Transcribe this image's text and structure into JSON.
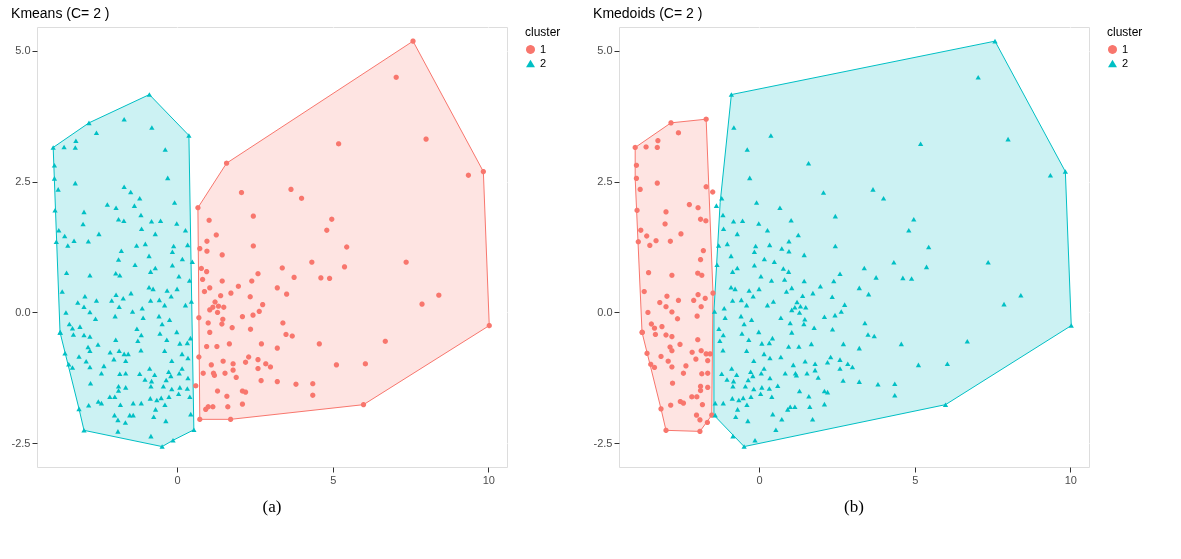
{
  "chart_data": [
    {
      "type": "scatter",
      "title": "Kmeans (C= 2 )",
      "legend_title": "cluster",
      "legend": "right",
      "grid": true,
      "annotations": [
        "(a)"
      ],
      "xlim": [
        -4.5,
        10.6
      ],
      "xticks": [
        0,
        5,
        10
      ],
      "ylim": [
        -2.95,
        5.45
      ],
      "yticks": [
        {
          "value": -2.5,
          "label": "-2.5"
        },
        {
          "value": 0,
          "label": "0.0"
        },
        {
          "value": 2.5,
          "label": "2.5"
        },
        {
          "value": 5,
          "label": "5.0"
        }
      ],
      "series": [
        {
          "type": "area",
          "color": "#f8766d",
          "x": [
            7.58,
            9.84,
            10.03,
            5.99,
            1.72,
            0.73,
            0.67,
            1.59,
            7.58
          ],
          "values": [
            5.18,
            2.69,
            -0.25,
            -1.76,
            -2.04,
            -2.04,
            2.0,
            2.85,
            5.18
          ]
        },
        {
          "type": "area",
          "color": "#00bfc4",
          "x": [
            -0.89,
            0.38,
            0.54,
            -0.13,
            -0.48,
            -2.99,
            -3.15,
            -3.76,
            -3.98,
            -2.83,
            -0.89
          ],
          "values": [
            4.16,
            3.38,
            -2.24,
            -2.44,
            -2.56,
            -2.25,
            -1.84,
            -0.38,
            3.15,
            3.62,
            4.16
          ]
        },
        {
          "name": "1",
          "color": "#f8766d",
          "marker": "circle",
          "x": [
            7.58,
            9.84,
            10.03,
            5.99,
            1.72,
            0.73,
            0.67,
            1.59,
            7.04,
            8.0,
            9.36,
            5.19,
            3.66,
            4.0,
            2.07,
            4.97,
            4.81,
            2.45,
            5.45,
            2.45,
            7.36,
            4.33,
            5.38,
            3.38,
            3.76,
            4.62,
            4.9,
            8.41,
            7.87,
            3.22,
            3.52,
            2.6,
            2.4,
            2.64,
            2.44,
            2.75,
            2.35,
            2.1,
            2.36,
            1.97,
            1.73,
            1.4,
            1.5,
            1.05,
            1.3,
            1.47,
            1.44,
            1.77,
            1.0,
            0.7,
            3.4,
            3.5,
            3.7,
            1.05,
            0.95,
            1.28,
            1.68,
            2.71,
            3.22,
            4.57,
            6.69,
            6.05,
            5.12,
            2.3,
            2.2,
            2.6,
            2.85,
            3.0,
            2.6,
            1.48,
            1.8,
            1.1,
            1.8,
            1.54,
            1.17,
            0.84,
            1.2,
            1.9,
            2.7,
            3.22,
            3.82,
            4.36,
            4.36,
            1.3,
            2.1,
            2.2,
            1.6,
            2.1,
            1.63,
            1.15,
            1.0,
            0.92,
            0.7,
            0.6,
            0.78,
            0.95,
            0.82,
            1.45,
            1.26,
            0.96,
            0.73,
            0.96,
            1.03,
            1.45,
            0.88,
            1.05,
            1.22,
            1.33,
            1.15
          ],
          "values": [
            5.18,
            2.69,
            -0.25,
            -1.76,
            -2.04,
            -2.04,
            2.0,
            2.85,
            4.49,
            3.31,
            2.62,
            3.22,
            2.35,
            2.18,
            2.29,
            1.78,
            1.57,
            1.84,
            1.25,
            1.27,
            0.96,
            0.96,
            0.87,
            0.85,
            0.67,
            0.66,
            0.65,
            0.33,
            0.16,
            0.47,
            0.35,
            0.74,
            0.6,
            0.02,
            -0.05,
            0.15,
            0.3,
            -0.08,
            -0.32,
            0.5,
            0.37,
            0.32,
            0.1,
            0.05,
            0.0,
            -0.13,
            -0.22,
            -0.29,
            -0.2,
            -0.1,
            -0.2,
            -0.42,
            -0.45,
            -0.38,
            -0.65,
            -0.65,
            -0.6,
            -0.6,
            -0.68,
            -0.6,
            -0.55,
            -0.98,
            -1.0,
            -0.85,
            -0.95,
            -0.9,
            -0.98,
            -1.04,
            -1.07,
            -0.93,
            -0.98,
            -1.0,
            -1.1,
            -1.16,
            -1.16,
            -1.16,
            -1.2,
            -1.24,
            -1.3,
            -1.32,
            -1.37,
            -1.36,
            -1.58,
            -1.5,
            -1.5,
            -1.52,
            -1.6,
            -1.75,
            -1.8,
            -1.8,
            -1.8,
            -1.85,
            -0.85,
            -1.4,
            0.84,
            0.78,
            0.63,
            1.1,
            1.48,
            1.36,
            1.22,
            1.17,
            1.76,
            0.6,
            0.4,
            0.47,
            0.2,
            0.12,
            0.1
          ]
        },
        {
          "name": "2",
          "color": "#00bfc4",
          "marker": "triangle",
          "x": [
            -0.89,
            0.38,
            0.54,
            -0.13,
            -0.48,
            -2.99,
            -3.15,
            -3.76,
            -3.98,
            -2.83,
            -3.94,
            -1.7,
            -0.81,
            -2.59,
            -3.63,
            -3.27,
            -3.25,
            -0.38,
            -0.3,
            -3.27,
            -3.94,
            -3.82,
            -1.7,
            -1.49,
            -1.2,
            -0.08,
            -2.24,
            -1.96,
            -1.37,
            -3.92,
            -2.99,
            -1.88,
            -1.71,
            -1.16,
            -0.82,
            -0.53,
            -3.02,
            -1.14,
            -0.7,
            -0.01,
            0.27,
            -3.8,
            -3.61,
            -3.31,
            -2.85,
            -2.51,
            -3.88,
            -3.51,
            -1.3,
            -1.02,
            -0.11,
            0.34,
            -1.79,
            -0.15,
            0.17,
            -1.88,
            -1.35,
            -0.9,
            -0.85,
            -0.7,
            -0.15,
            0.49,
            -3.55,
            -2.8,
            -1.97,
            -1.84,
            0.06,
            0.4,
            -3.69,
            -2.96,
            -2.59,
            -2.1,
            -1.73,
            -1.48,
            -1.96,
            -0.9,
            -0.77,
            -0.32,
            0.0,
            -0.85,
            -0.57,
            -0.19,
            -0.4,
            0.46,
            0.27,
            -3.19,
            -2.99,
            -3.57,
            -2.8,
            -1.86,
            -1.43,
            -1.12,
            -1.99,
            -2.62,
            -1.09,
            -0.58,
            -0.48,
            -0.24,
            -3.46,
            -3.36,
            -3.12,
            -3.33,
            -2.99,
            -2.8,
            -3.75,
            -1.29,
            -1.15,
            -0.55,
            -0.01,
            -1.97,
            -1.26,
            -0.33,
            0.43,
            0.33,
            0.09,
            -2.54,
            -2.86,
            -2.8,
            -3.6,
            -2.15,
            -1.86,
            -1.7,
            -1.57,
            -1.16,
            -0.4,
            0.16,
            -3.15,
            -2.92,
            -2.03,
            -1.65,
            -0.17,
            0.35,
            -3.48,
            -3.36,
            -2.8,
            -2.35,
            -2.43,
            -0.88,
            -1.2,
            -0.72,
            -0.27,
            0.16,
            0.07,
            -0.2,
            -1.84,
            -1.65,
            0.35,
            -1.03,
            -0.82,
            -0.35,
            -2.78,
            -1.88,
            -1.65,
            -0.84,
            -0.44,
            -0.17,
            0.09,
            0.33,
            -1.88,
            0.05,
            0.41,
            -2.16,
            -2.0,
            -2.53,
            -2.43,
            -2.84,
            -1.82,
            -1.41,
            -1.15,
            -0.86,
            -0.65,
            -0.51,
            -0.26,
            -0.39,
            -0.69,
            -2.01,
            -1.52,
            -1.41,
            -0.75,
            -1.9,
            -1.66,
            -0.36,
            0.44,
            -1.9,
            -0.84
          ],
          "values": [
            4.16,
            3.38,
            -2.24,
            -2.44,
            -2.56,
            -2.25,
            -1.84,
            -0.38,
            3.15,
            3.62,
            2.81,
            3.69,
            3.53,
            3.43,
            3.16,
            3.15,
            3.28,
            3.11,
            2.57,
            2.47,
            2.56,
            2.35,
            2.4,
            2.3,
            2.18,
            2.1,
            2.06,
            2.0,
            2.04,
            1.95,
            1.92,
            1.78,
            1.75,
            1.86,
            1.74,
            1.75,
            1.69,
            1.6,
            1.5,
            1.7,
            1.57,
            1.57,
            1.46,
            1.37,
            1.36,
            1.5,
            1.35,
            1.28,
            1.28,
            1.31,
            1.27,
            1.29,
            1.18,
            1.16,
            1.02,
            1.01,
            0.91,
            1.08,
            0.78,
            0.85,
            0.9,
            0.97,
            0.76,
            0.71,
            0.75,
            0.71,
            0.69,
            0.61,
            0.4,
            0.31,
            0.23,
            0.23,
            0.27,
            0.37,
            0.34,
            0.48,
            0.45,
            0.42,
            0.45,
            0.23,
            0.24,
            0.31,
            0.14,
            0.21,
            0.14,
            0.19,
            0.11,
            0.0,
            0.01,
            0.11,
            0.02,
            0.08,
            -0.07,
            -0.12,
            -0.1,
            -0.07,
            -0.22,
            -0.14,
            -0.22,
            -0.3,
            -0.27,
            -0.42,
            -0.43,
            -0.46,
            -0.38,
            -0.31,
            -0.43,
            -0.4,
            -0.37,
            -0.52,
            -0.54,
            -0.52,
            -0.49,
            -0.58,
            -0.59,
            -0.61,
            -0.66,
            -0.73,
            -0.78,
            -0.76,
            -0.73,
            -0.79,
            -0.79,
            -0.72,
            -0.73,
            -0.79,
            -0.84,
            -0.93,
            -0.89,
            -0.92,
            -0.92,
            -0.87,
            -0.99,
            -1.05,
            -1.04,
            -1.02,
            -1.16,
            -1.07,
            -1.17,
            -1.19,
            -1.13,
            -1.07,
            -1.16,
            -1.21,
            -1.17,
            -1.16,
            -1.25,
            -1.28,
            -1.31,
            -1.29,
            -1.35,
            -1.41,
            -1.43,
            -1.41,
            -1.41,
            -1.46,
            -1.43,
            -1.45,
            -1.49,
            -1.55,
            -1.61,
            -1.61,
            -1.61,
            -1.7,
            -1.73,
            -1.77,
            -1.76,
            -1.73,
            -1.73,
            -1.64,
            -1.67,
            -1.63,
            -1.61,
            -1.76,
            -1.85,
            -1.96,
            -1.96,
            -1.96,
            -1.99,
            -2.05,
            -2.1,
            -2.07,
            -1.94,
            -2.27,
            -2.36
          ]
        }
      ]
    },
    {
      "type": "scatter",
      "title": "Kmedoids (C= 2 )",
      "legend_title": "cluster",
      "legend": "right",
      "grid": true,
      "annotations": [
        "(b)"
      ],
      "xlim": [
        -4.5,
        10.6
      ],
      "xticks": [
        0,
        5,
        10
      ],
      "ylim": [
        -2.95,
        5.45
      ],
      "yticks": [
        {
          "value": -2.5,
          "label": "-2.5"
        },
        {
          "value": 0,
          "label": "0.0"
        },
        {
          "value": 2.5,
          "label": "2.5"
        },
        {
          "value": 5,
          "label": "5.0"
        }
      ],
      "series": [
        {
          "type": "area",
          "color": "#f8766d",
          "x": [
            -3.98,
            -2.83,
            -1.7,
            -1.48,
            -1.52,
            -1.9,
            -2.99,
            -3.15,
            -3.76,
            -3.98,
            -3.98
          ],
          "values": [
            3.15,
            3.62,
            3.69,
            0.37,
            -1.96,
            -2.27,
            -2.25,
            -1.84,
            -0.38,
            2.56,
            3.15
          ]
        },
        {
          "type": "area",
          "color": "#00bfc4",
          "x": [
            -0.89,
            7.58,
            9.84,
            10.03,
            5.99,
            -0.48,
            -1.45,
            -1.45,
            -1.25,
            -0.89
          ],
          "values": [
            4.16,
            5.18,
            2.69,
            -0.25,
            -1.76,
            -2.56,
            -1.96,
            0.02,
            2.1,
            4.16
          ]
        },
        {
          "name": "1",
          "color": "#f8766d",
          "marker": "circle",
          "x": [
            -1.7,
            -2.59,
            -3.63,
            -3.27,
            -3.25,
            -3.27,
            -3.94,
            -3.82,
            -1.7,
            -1.49,
            -2.24,
            -1.96,
            -3.92,
            -2.99,
            -1.88,
            -1.71,
            -3.02,
            -3.8,
            -3.61,
            -3.31,
            -2.85,
            -2.51,
            -3.88,
            -3.51,
            -1.79,
            -1.88,
            -3.55,
            -2.8,
            -1.97,
            -1.84,
            -3.69,
            -2.96,
            -2.59,
            -2.1,
            -1.73,
            -1.48,
            -1.96,
            -3.19,
            -2.99,
            -3.57,
            -2.8,
            -1.86,
            -1.99,
            -2.62,
            -3.46,
            -3.36,
            -3.12,
            -3.33,
            -2.99,
            -2.8,
            -3.75,
            -1.97,
            -2.54,
            -2.86,
            -2.8,
            -3.6,
            -2.15,
            -1.86,
            -1.7,
            -1.57,
            -3.15,
            -2.92,
            -2.03,
            -1.65,
            -3.48,
            -3.36,
            -2.8,
            -2.35,
            -2.43,
            -1.84,
            -1.65,
            -2.78,
            -1.88,
            -1.65,
            -1.88,
            -2.16,
            -2.0,
            -2.53,
            -2.43,
            -2.84,
            -1.82,
            -2.01,
            -1.52,
            -1.9,
            -1.66,
            -1.9,
            -2.99,
            -3.15,
            -3.76,
            -3.98,
            -2.83,
            -3.94
          ],
          "values": [
            3.69,
            3.43,
            3.16,
            3.15,
            3.28,
            2.47,
            2.56,
            2.35,
            2.4,
            2.3,
            2.06,
            2.0,
            1.95,
            1.92,
            1.78,
            1.75,
            1.69,
            1.57,
            1.46,
            1.37,
            1.36,
            1.5,
            1.35,
            1.28,
            1.18,
            1.01,
            0.76,
            0.71,
            0.75,
            0.71,
            0.4,
            0.31,
            0.23,
            0.23,
            0.27,
            0.37,
            0.34,
            0.19,
            0.11,
            0.0,
            0.01,
            0.11,
            -0.07,
            -0.12,
            -0.22,
            -0.3,
            -0.27,
            -0.42,
            -0.43,
            -0.46,
            -0.38,
            -0.52,
            -0.61,
            -0.66,
            -0.73,
            -0.78,
            -0.76,
            -0.73,
            -0.79,
            -0.79,
            -0.84,
            -0.93,
            -0.89,
            -0.92,
            -0.99,
            -1.05,
            -1.04,
            -1.02,
            -1.16,
            -1.17,
            -1.16,
            -1.35,
            -1.41,
            -1.43,
            -1.49,
            -1.61,
            -1.61,
            -1.7,
            -1.73,
            -1.77,
            -1.76,
            -1.96,
            -1.96,
            -2.05,
            -2.1,
            -2.27,
            -2.25,
            -1.84,
            -0.38,
            3.15,
            3.62,
            2.81
          ]
        },
        {
          "name": "2",
          "color": "#00bfc4",
          "marker": "triangle",
          "x": [
            -0.81,
            -0.38,
            -0.3,
            -1.2,
            -0.08,
            -1.37,
            -1.16,
            -0.82,
            -0.53,
            -1.14,
            -0.7,
            -0.01,
            0.27,
            -1.3,
            -1.02,
            -0.11,
            0.34,
            -0.15,
            0.17,
            -1.35,
            -0.9,
            -0.85,
            -0.7,
            -0.15,
            0.49,
            0.06,
            0.4,
            -0.9,
            -0.77,
            -0.32,
            0.0,
            -0.85,
            -0.57,
            -0.19,
            -0.4,
            0.46,
            0.27,
            -1.43,
            -1.12,
            -1.09,
            -0.58,
            -0.48,
            -0.24,
            -1.29,
            -1.15,
            -0.55,
            -0.01,
            -1.26,
            -0.33,
            0.43,
            0.33,
            0.09,
            -1.16,
            -0.4,
            0.16,
            -0.17,
            0.35,
            -0.88,
            -1.2,
            -0.72,
            -0.27,
            0.16,
            0.07,
            -0.2,
            0.35,
            -1.03,
            -0.82,
            -0.35,
            -0.84,
            -0.44,
            -0.17,
            0.09,
            0.33,
            0.05,
            0.41,
            -1.41,
            -1.15,
            -0.86,
            -0.65,
            -0.51,
            -0.26,
            -0.39,
            -0.69,
            -1.41,
            -0.75,
            -0.36,
            0.44,
            -0.84,
            -0.89,
            0.38,
            0.54,
            -0.13,
            -0.48,
            7.58,
            9.84,
            10.03,
            5.99,
            1.72,
            0.73,
            0.67,
            1.59,
            7.04,
            8.0,
            9.36,
            5.19,
            3.66,
            4.0,
            2.07,
            4.97,
            4.81,
            2.45,
            5.45,
            2.45,
            7.36,
            4.33,
            5.38,
            3.38,
            3.76,
            4.62,
            4.9,
            8.41,
            7.87,
            3.22,
            3.52,
            2.6,
            2.4,
            2.64,
            2.44,
            2.75,
            2.35,
            2.1,
            2.36,
            1.97,
            1.73,
            1.4,
            1.5,
            1.05,
            1.3,
            1.47,
            1.44,
            1.77,
            1.0,
            0.7,
            3.4,
            3.5,
            3.7,
            1.05,
            0.95,
            1.28,
            1.68,
            2.71,
            3.22,
            4.57,
            6.69,
            6.05,
            5.12,
            2.3,
            2.2,
            2.6,
            2.85,
            3.0,
            2.6,
            1.48,
            1.8,
            1.1,
            1.8,
            1.54,
            1.17,
            0.84,
            1.2,
            1.9,
            2.7,
            3.22,
            3.82,
            4.36,
            4.36,
            1.3,
            2.1,
            2.2,
            1.6,
            2.1,
            1.63,
            1.15,
            1.0,
            0.92,
            0.7,
            0.6,
            0.78,
            0.95,
            0.82,
            1.45,
            1.26,
            0.96,
            0.73,
            0.96,
            1.03,
            1.45,
            0.88,
            1.05,
            1.22,
            1.33,
            1.15
          ],
          "values": [
            3.53,
            3.11,
            2.57,
            2.18,
            2.1,
            2.04,
            1.86,
            1.74,
            1.75,
            1.6,
            1.5,
            1.7,
            1.57,
            1.28,
            1.31,
            1.27,
            1.29,
            1.16,
            1.02,
            0.91,
            1.08,
            0.78,
            0.85,
            0.9,
            0.97,
            0.69,
            0.61,
            0.48,
            0.45,
            0.42,
            0.45,
            0.23,
            0.24,
            0.31,
            0.14,
            0.21,
            0.14,
            0.02,
            0.08,
            -0.1,
            -0.07,
            -0.22,
            -0.14,
            -0.31,
            -0.43,
            -0.4,
            -0.37,
            -0.54,
            -0.52,
            -0.49,
            -0.58,
            -0.59,
            -0.72,
            -0.73,
            -0.79,
            -0.92,
            -0.87,
            -1.07,
            -1.17,
            -1.19,
            -1.13,
            -1.07,
            -1.16,
            -1.21,
            -1.25,
            -1.28,
            -1.31,
            -1.29,
            -1.41,
            -1.41,
            -1.46,
            -1.43,
            -1.45,
            -1.55,
            -1.61,
            -1.73,
            -1.73,
            -1.64,
            -1.67,
            -1.63,
            -1.61,
            -1.76,
            -1.85,
            -1.96,
            -1.99,
            -2.07,
            -1.94,
            -2.36,
            4.16,
            3.38,
            -2.24,
            -2.44,
            -2.56,
            5.18,
            2.69,
            -0.25,
            -1.76,
            -2.04,
            -2.04,
            2.0,
            2.85,
            4.49,
            3.31,
            2.62,
            3.22,
            2.35,
            2.18,
            2.29,
            1.78,
            1.57,
            1.84,
            1.25,
            1.27,
            0.96,
            0.96,
            0.87,
            0.85,
            0.67,
            0.66,
            0.65,
            0.33,
            0.16,
            0.47,
            0.35,
            0.74,
            0.6,
            0.02,
            -0.05,
            0.15,
            0.3,
            -0.08,
            -0.32,
            0.5,
            0.37,
            0.32,
            0.1,
            0.05,
            0.0,
            -0.13,
            -0.22,
            -0.29,
            -0.2,
            -0.1,
            -0.2,
            -0.42,
            -0.45,
            -0.38,
            -0.65,
            -0.65,
            -0.6,
            -0.6,
            -0.68,
            -0.6,
            -0.55,
            -0.98,
            -1.0,
            -0.85,
            -0.95,
            -0.9,
            -0.98,
            -1.04,
            -1.07,
            -0.93,
            -0.98,
            -1.0,
            -1.1,
            -1.16,
            -1.16,
            -1.16,
            -1.2,
            -1.24,
            -1.3,
            -1.32,
            -1.37,
            -1.36,
            -1.58,
            -1.5,
            -1.5,
            -1.52,
            -1.6,
            -1.75,
            -1.8,
            -1.8,
            -1.8,
            -1.85,
            -0.85,
            -1.4,
            0.84,
            0.78,
            0.63,
            1.1,
            1.48,
            1.36,
            1.22,
            1.17,
            1.76,
            0.6,
            0.4,
            0.47,
            0.2,
            0.12,
            0.1
          ]
        }
      ]
    }
  ]
}
